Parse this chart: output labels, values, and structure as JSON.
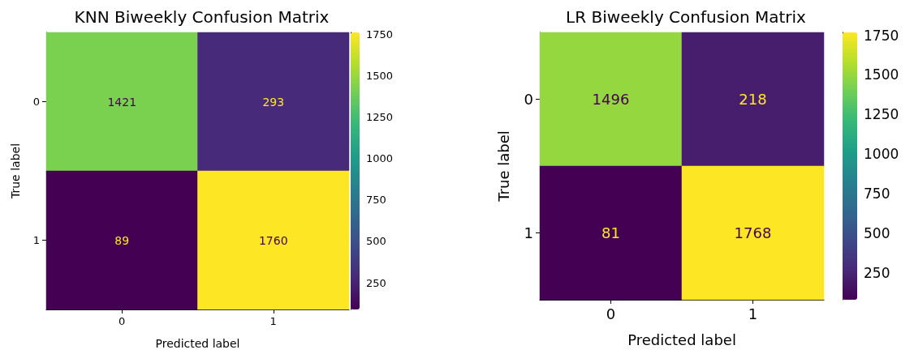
{
  "chart_data": [
    {
      "type": "heatmap",
      "title": "KNN Biweekly Confusion Matrix",
      "xlabel": "Predicted label",
      "ylabel": "True label",
      "categories": [
        "0",
        "1"
      ],
      "y_categories": [
        "0",
        "1"
      ],
      "cells": [
        [
          1421,
          293
        ],
        [
          89,
          1760
        ]
      ],
      "data_labels": true,
      "clim": [
        89,
        1760
      ],
      "cticks": [
        250,
        500,
        750,
        1000,
        1250,
        1500,
        1750
      ]
    },
    {
      "type": "heatmap",
      "title": "LR Biweekly Confusion Matrix",
      "xlabel": "Predicted label",
      "ylabel": "True label",
      "categories": [
        "0",
        "1"
      ],
      "y_categories": [
        "0",
        "1"
      ],
      "cells": [
        [
          1496,
          218
        ],
        [
          81,
          1768
        ]
      ],
      "data_labels": true,
      "clim": [
        81,
        1768
      ],
      "cticks": [
        250,
        500,
        750,
        1000,
        1250,
        1500,
        1750
      ]
    }
  ]
}
